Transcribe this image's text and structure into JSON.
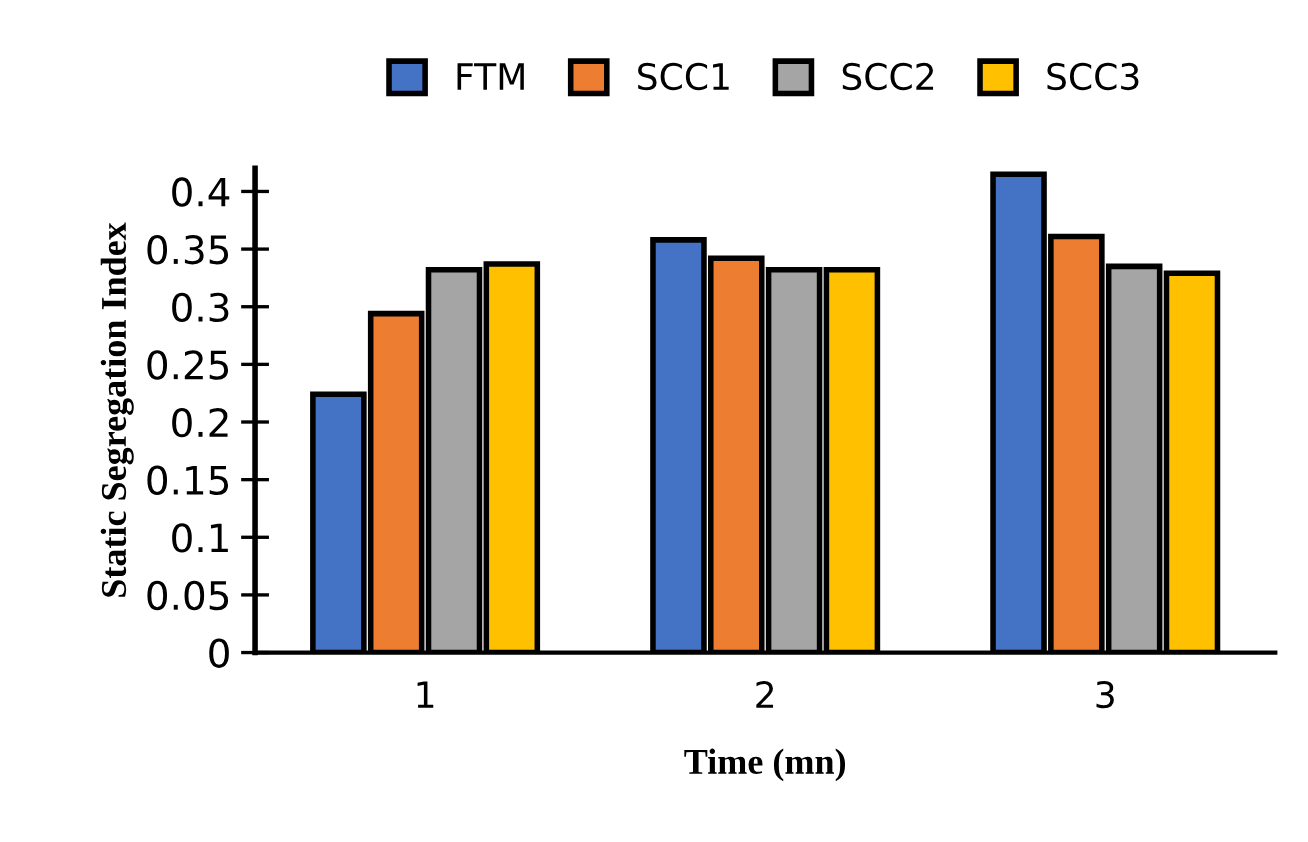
{
  "chart_data": {
    "type": "bar",
    "categories": [
      "1",
      "2",
      "3"
    ],
    "series": [
      {
        "name": "FTM",
        "color": "#4472c4",
        "values": [
          0.224,
          0.358,
          0.415
        ]
      },
      {
        "name": "SCC1",
        "color": "#ed7d31",
        "values": [
          0.294,
          0.342,
          0.361
        ]
      },
      {
        "name": "SCC2",
        "color": "#a5a5a5",
        "values": [
          0.332,
          0.332,
          0.335
        ]
      },
      {
        "name": "SCC3",
        "color": "#ffc000",
        "values": [
          0.337,
          0.332,
          0.329
        ]
      }
    ],
    "xlabel": "Time (mn)",
    "ylabel": "Static Segregation Index",
    "ylim": [
      0,
      0.42
    ],
    "yticks": [
      {
        "value": 0,
        "label": "0"
      },
      {
        "value": 0.05,
        "label": "0.05"
      },
      {
        "value": 0.1,
        "label": "0.1"
      },
      {
        "value": 0.15,
        "label": "0.15"
      },
      {
        "value": 0.2,
        "label": "0.2"
      },
      {
        "value": 0.25,
        "label": "0.25"
      },
      {
        "value": 0.3,
        "label": "0.3"
      },
      {
        "value": 0.35,
        "label": "0.35"
      },
      {
        "value": 0.4,
        "label": "0.4"
      }
    ],
    "grid": false,
    "legend": "top"
  }
}
